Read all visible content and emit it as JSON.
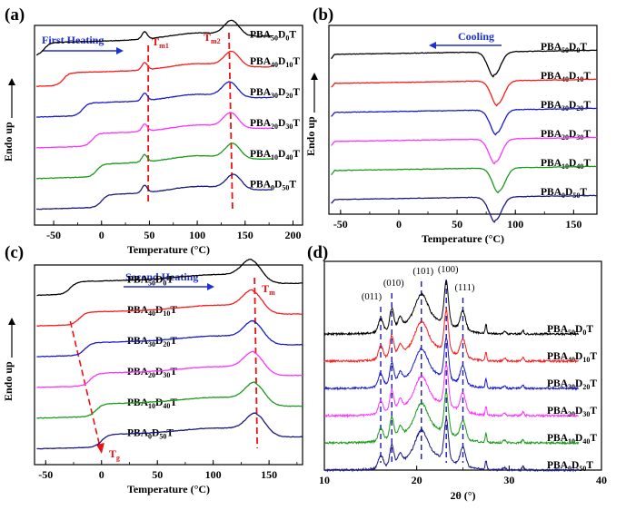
{
  "colors": {
    "black": "#000000",
    "red": "#ff1a1a",
    "blue": "#1a1acc",
    "magenta": "#ff33ff",
    "green": "#1a9a1a",
    "navy": "#1a1a80",
    "annot_blue": "#1f2fd6",
    "dash_red": "#ee1111",
    "dash_blue": "#1a1aaa"
  },
  "series_names": [
    {
      "base": "PBA",
      "s1": "50",
      "mid": "D",
      "s2": "0",
      "end": "T"
    },
    {
      "base": "PBA",
      "s1": "40",
      "mid": "D",
      "s2": "10",
      "end": "T"
    },
    {
      "base": "PBA",
      "s1": "30",
      "mid": "D",
      "s2": "20",
      "end": "T"
    },
    {
      "base": "PBA",
      "s1": "20",
      "mid": "D",
      "s2": "30",
      "end": "T"
    },
    {
      "base": "PBA",
      "s1": "10",
      "mid": "D",
      "s2": "40",
      "end": "T"
    },
    {
      "base": "PBA",
      "s1": "0",
      "mid": "D",
      "s2": "50",
      "end": "T"
    }
  ],
  "chart_data": [
    {
      "panel": "(a)",
      "type": "line",
      "annotation": "First Heating",
      "xlabel": "Temperature (°C)",
      "ylabel": "Endo up",
      "xlim": [
        -70,
        210
      ],
      "xticks": [
        -50,
        0,
        50,
        100,
        150,
        200
      ],
      "markers": [
        {
          "label": "T",
          "sub": "m1",
          "x": 45
        },
        {
          "label": "T",
          "sub": "m2",
          "x": 135
        }
      ],
      "series_peaks_x": [
        136,
        136,
        134,
        135,
        137,
        138
      ],
      "glass_step_x": [
        -60,
        -40,
        -20,
        -10,
        -5,
        0
      ]
    },
    {
      "panel": "(b)",
      "type": "line",
      "annotation": "Cooling",
      "xlabel": "Temperature (°C)",
      "ylabel": "Endo up",
      "xlim": [
        -60,
        170
      ],
      "xticks": [
        -50,
        0,
        50,
        100,
        150
      ],
      "series_dip_x": [
        82,
        85,
        84,
        83,
        86,
        83
      ]
    },
    {
      "panel": "(c)",
      "type": "line",
      "annotation": "Second Heating",
      "xlabel": "Temperature (°C)",
      "ylabel": "Endo up",
      "xlim": [
        -60,
        180
      ],
      "xticks": [
        -50,
        0,
        50,
        100,
        150
      ],
      "markers": [
        {
          "label": "T",
          "sub": "m",
          "x": 137
        },
        {
          "label": "T",
          "sub": "g",
          "x": 5
        }
      ],
      "series_peaks_x": [
        134,
        135,
        136,
        136,
        137,
        138
      ],
      "glass_step_x": [
        -28,
        -20,
        -15,
        -10,
        -5,
        0
      ]
    },
    {
      "panel": "(d)",
      "type": "line",
      "xlabel": "2θ (°)",
      "xlim": [
        10,
        40
      ],
      "xticks": [
        10,
        20,
        30,
        40
      ],
      "reflections": [
        {
          "hkl": "(011)",
          "x": 16.1
        },
        {
          "hkl": "(010)",
          "x": 17.3
        },
        {
          "hkl": "(101)",
          "x": 20.5
        },
        {
          "hkl": "(100)",
          "x": 23.2
        },
        {
          "hkl": "(111)",
          "x": 25.0
        }
      ],
      "extra_peaks_x": [
        27.5,
        29.5,
        31.5
      ]
    }
  ]
}
